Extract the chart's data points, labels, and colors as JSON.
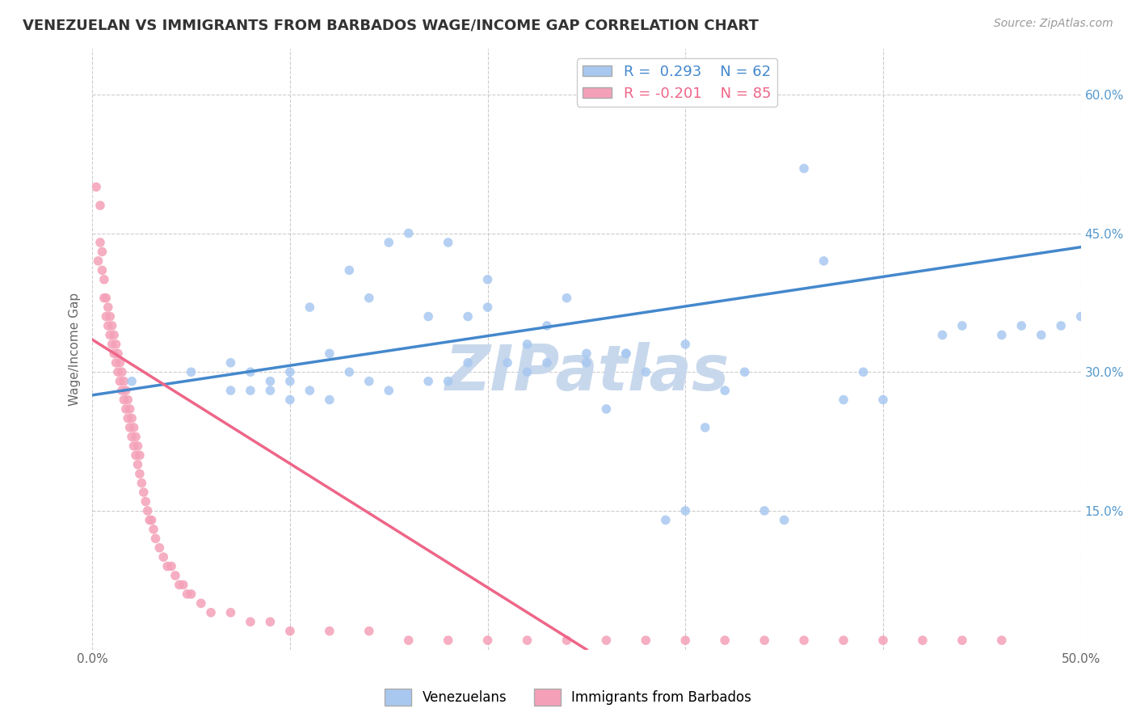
{
  "title": "VENEZUELAN VS IMMIGRANTS FROM BARBADOS WAGE/INCOME GAP CORRELATION CHART",
  "source": "Source: ZipAtlas.com",
  "ylabel": "Wage/Income Gap",
  "x_min": 0.0,
  "x_max": 0.5,
  "y_min": 0.0,
  "y_max": 0.65,
  "x_ticks": [
    0.0,
    0.1,
    0.2,
    0.3,
    0.4,
    0.5
  ],
  "x_tick_labels": [
    "0.0%",
    "",
    "",
    "",
    "",
    "50.0%"
  ],
  "y_ticks": [
    0.0,
    0.15,
    0.3,
    0.45,
    0.6
  ],
  "y_tick_labels": [
    "",
    "15.0%",
    "30.0%",
    "45.0%",
    "60.0%"
  ],
  "r_venezuelan": 0.293,
  "n_venezuelan": 62,
  "r_barbados": -0.201,
  "n_barbados": 85,
  "color_venezuelan": "#A8C8F0",
  "color_barbados": "#F4A0B8",
  "line_color_venezuelan": "#4488CC",
  "line_color_barbados": "#EE6688",
  "watermark": "ZIPatlas",
  "watermark_color": "#C8D8EC",
  "background_color": "#FFFFFF",
  "grid_color": "#CCCCCC",
  "venezuelan_x": [
    0.02,
    0.05,
    0.07,
    0.07,
    0.08,
    0.08,
    0.09,
    0.09,
    0.1,
    0.1,
    0.1,
    0.11,
    0.11,
    0.12,
    0.12,
    0.13,
    0.13,
    0.14,
    0.14,
    0.15,
    0.15,
    0.16,
    0.17,
    0.17,
    0.18,
    0.18,
    0.19,
    0.19,
    0.2,
    0.2,
    0.21,
    0.22,
    0.22,
    0.23,
    0.23,
    0.24,
    0.25,
    0.25,
    0.26,
    0.27,
    0.27,
    0.28,
    0.29,
    0.3,
    0.3,
    0.31,
    0.32,
    0.33,
    0.34,
    0.35,
    0.36,
    0.37,
    0.38,
    0.39,
    0.4,
    0.43,
    0.44,
    0.46,
    0.47,
    0.48,
    0.49,
    0.5
  ],
  "venezuelan_y": [
    0.29,
    0.3,
    0.28,
    0.31,
    0.28,
    0.3,
    0.28,
    0.29,
    0.27,
    0.29,
    0.3,
    0.28,
    0.37,
    0.27,
    0.32,
    0.3,
    0.41,
    0.29,
    0.38,
    0.28,
    0.44,
    0.45,
    0.29,
    0.36,
    0.29,
    0.44,
    0.31,
    0.36,
    0.37,
    0.4,
    0.31,
    0.3,
    0.33,
    0.31,
    0.35,
    0.38,
    0.31,
    0.32,
    0.26,
    0.32,
    0.32,
    0.3,
    0.14,
    0.15,
    0.33,
    0.24,
    0.28,
    0.3,
    0.15,
    0.14,
    0.52,
    0.42,
    0.27,
    0.3,
    0.27,
    0.34,
    0.35,
    0.34,
    0.35,
    0.34,
    0.35,
    0.36
  ],
  "barbados_x": [
    0.002,
    0.003,
    0.004,
    0.004,
    0.005,
    0.005,
    0.006,
    0.006,
    0.007,
    0.007,
    0.008,
    0.008,
    0.009,
    0.009,
    0.01,
    0.01,
    0.011,
    0.011,
    0.012,
    0.012,
    0.013,
    0.013,
    0.014,
    0.014,
    0.015,
    0.015,
    0.016,
    0.016,
    0.017,
    0.017,
    0.018,
    0.018,
    0.019,
    0.019,
    0.02,
    0.02,
    0.021,
    0.021,
    0.022,
    0.022,
    0.023,
    0.023,
    0.024,
    0.024,
    0.025,
    0.026,
    0.027,
    0.028,
    0.029,
    0.03,
    0.031,
    0.032,
    0.034,
    0.036,
    0.038,
    0.04,
    0.042,
    0.044,
    0.046,
    0.048,
    0.05,
    0.055,
    0.06,
    0.07,
    0.08,
    0.09,
    0.1,
    0.12,
    0.14,
    0.16,
    0.18,
    0.2,
    0.22,
    0.24,
    0.26,
    0.28,
    0.3,
    0.32,
    0.34,
    0.36,
    0.38,
    0.4,
    0.42,
    0.44,
    0.46
  ],
  "barbados_y": [
    0.5,
    0.42,
    0.44,
    0.48,
    0.43,
    0.41,
    0.4,
    0.38,
    0.36,
    0.38,
    0.35,
    0.37,
    0.34,
    0.36,
    0.33,
    0.35,
    0.32,
    0.34,
    0.31,
    0.33,
    0.3,
    0.32,
    0.29,
    0.31,
    0.28,
    0.3,
    0.27,
    0.29,
    0.26,
    0.28,
    0.25,
    0.27,
    0.24,
    0.26,
    0.23,
    0.25,
    0.22,
    0.24,
    0.21,
    0.23,
    0.2,
    0.22,
    0.19,
    0.21,
    0.18,
    0.17,
    0.16,
    0.15,
    0.14,
    0.14,
    0.13,
    0.12,
    0.11,
    0.1,
    0.09,
    0.09,
    0.08,
    0.07,
    0.07,
    0.06,
    0.06,
    0.05,
    0.04,
    0.04,
    0.03,
    0.03,
    0.02,
    0.02,
    0.02,
    0.01,
    0.01,
    0.01,
    0.01,
    0.01,
    0.01,
    0.01,
    0.01,
    0.01,
    0.01,
    0.01,
    0.01,
    0.01,
    0.01,
    0.01,
    0.01
  ],
  "trend_v_x0": 0.0,
  "trend_v_y0": 0.275,
  "trend_v_x1": 0.5,
  "trend_v_y1": 0.435,
  "trend_b_x0": 0.0,
  "trend_b_y0": 0.335,
  "trend_b_x1": 0.25,
  "trend_b_y1": 0.0
}
